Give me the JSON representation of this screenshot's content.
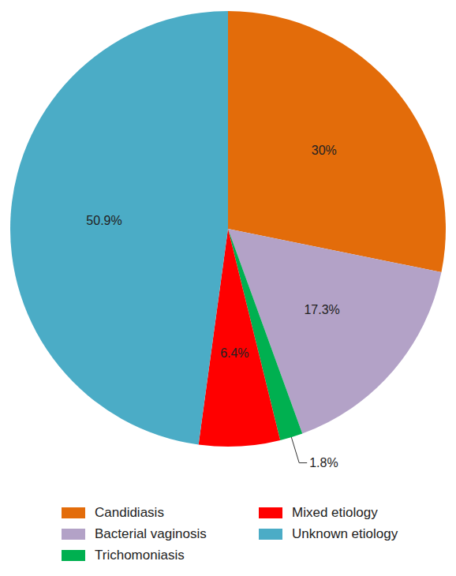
{
  "chart_data": {
    "type": "pie",
    "categories": [
      "Candidiasis",
      "Bacterial vaginosis",
      "Trichomoniasis",
      "Mixed etiology",
      "Unknown etiology"
    ],
    "values": [
      30,
      17.3,
      1.8,
      6.4,
      50.9
    ],
    "value_labels": [
      "30%",
      "17.3%",
      "1.8%",
      "6.4%",
      "50.9%"
    ],
    "colors": [
      "#e36c0a",
      "#b3a2c7",
      "#00b050",
      "#ff0000",
      "#4bacc6"
    ],
    "data_labels": true,
    "legend": "bottom"
  }
}
